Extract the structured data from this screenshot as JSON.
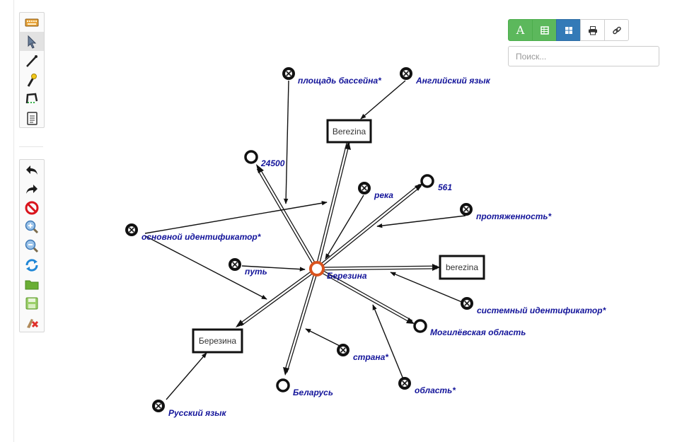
{
  "toolbar_top": [
    {
      "name": "keyboard-icon",
      "active": false
    },
    {
      "name": "select-pointer-icon",
      "active": true
    },
    {
      "name": "draw-line-icon",
      "active": false
    },
    {
      "name": "wand-icon",
      "active": false
    },
    {
      "name": "lasso-icon",
      "active": false
    },
    {
      "name": "notes-icon",
      "active": false
    }
  ],
  "toolbar_bottom": [
    {
      "name": "undo-icon"
    },
    {
      "name": "redo-icon"
    },
    {
      "name": "clear-icon"
    },
    {
      "name": "zoom-in-icon"
    },
    {
      "name": "zoom-out-icon"
    },
    {
      "name": "refresh-icon"
    },
    {
      "name": "open-folder-icon"
    },
    {
      "name": "save-icon"
    },
    {
      "name": "delete-icon"
    }
  ],
  "view_buttons": {
    "text_mode": "A",
    "icons": [
      "table-icon",
      "grid-icon",
      "print-icon",
      "link-icon"
    ]
  },
  "search": {
    "placeholder": "Поиск..."
  },
  "graph": {
    "center": {
      "label": "Березина",
      "color": "#d9531e"
    },
    "boxes": {
      "top": "Berezina",
      "right": "berezina",
      "left": "Березина"
    },
    "nodes": {
      "area": "площадь бассейна*",
      "english": "Английский язык",
      "n24500": "24500",
      "river": "река",
      "n561": "561",
      "length": "протяженность*",
      "main_id": "основной идентификатор*",
      "path": "путь",
      "system_id": "системный идентификатор*",
      "mogilev": "Могилёвская область",
      "country": "страна*",
      "belarus": "Беларусь",
      "region": "область*",
      "russian": "Русский язык"
    }
  }
}
